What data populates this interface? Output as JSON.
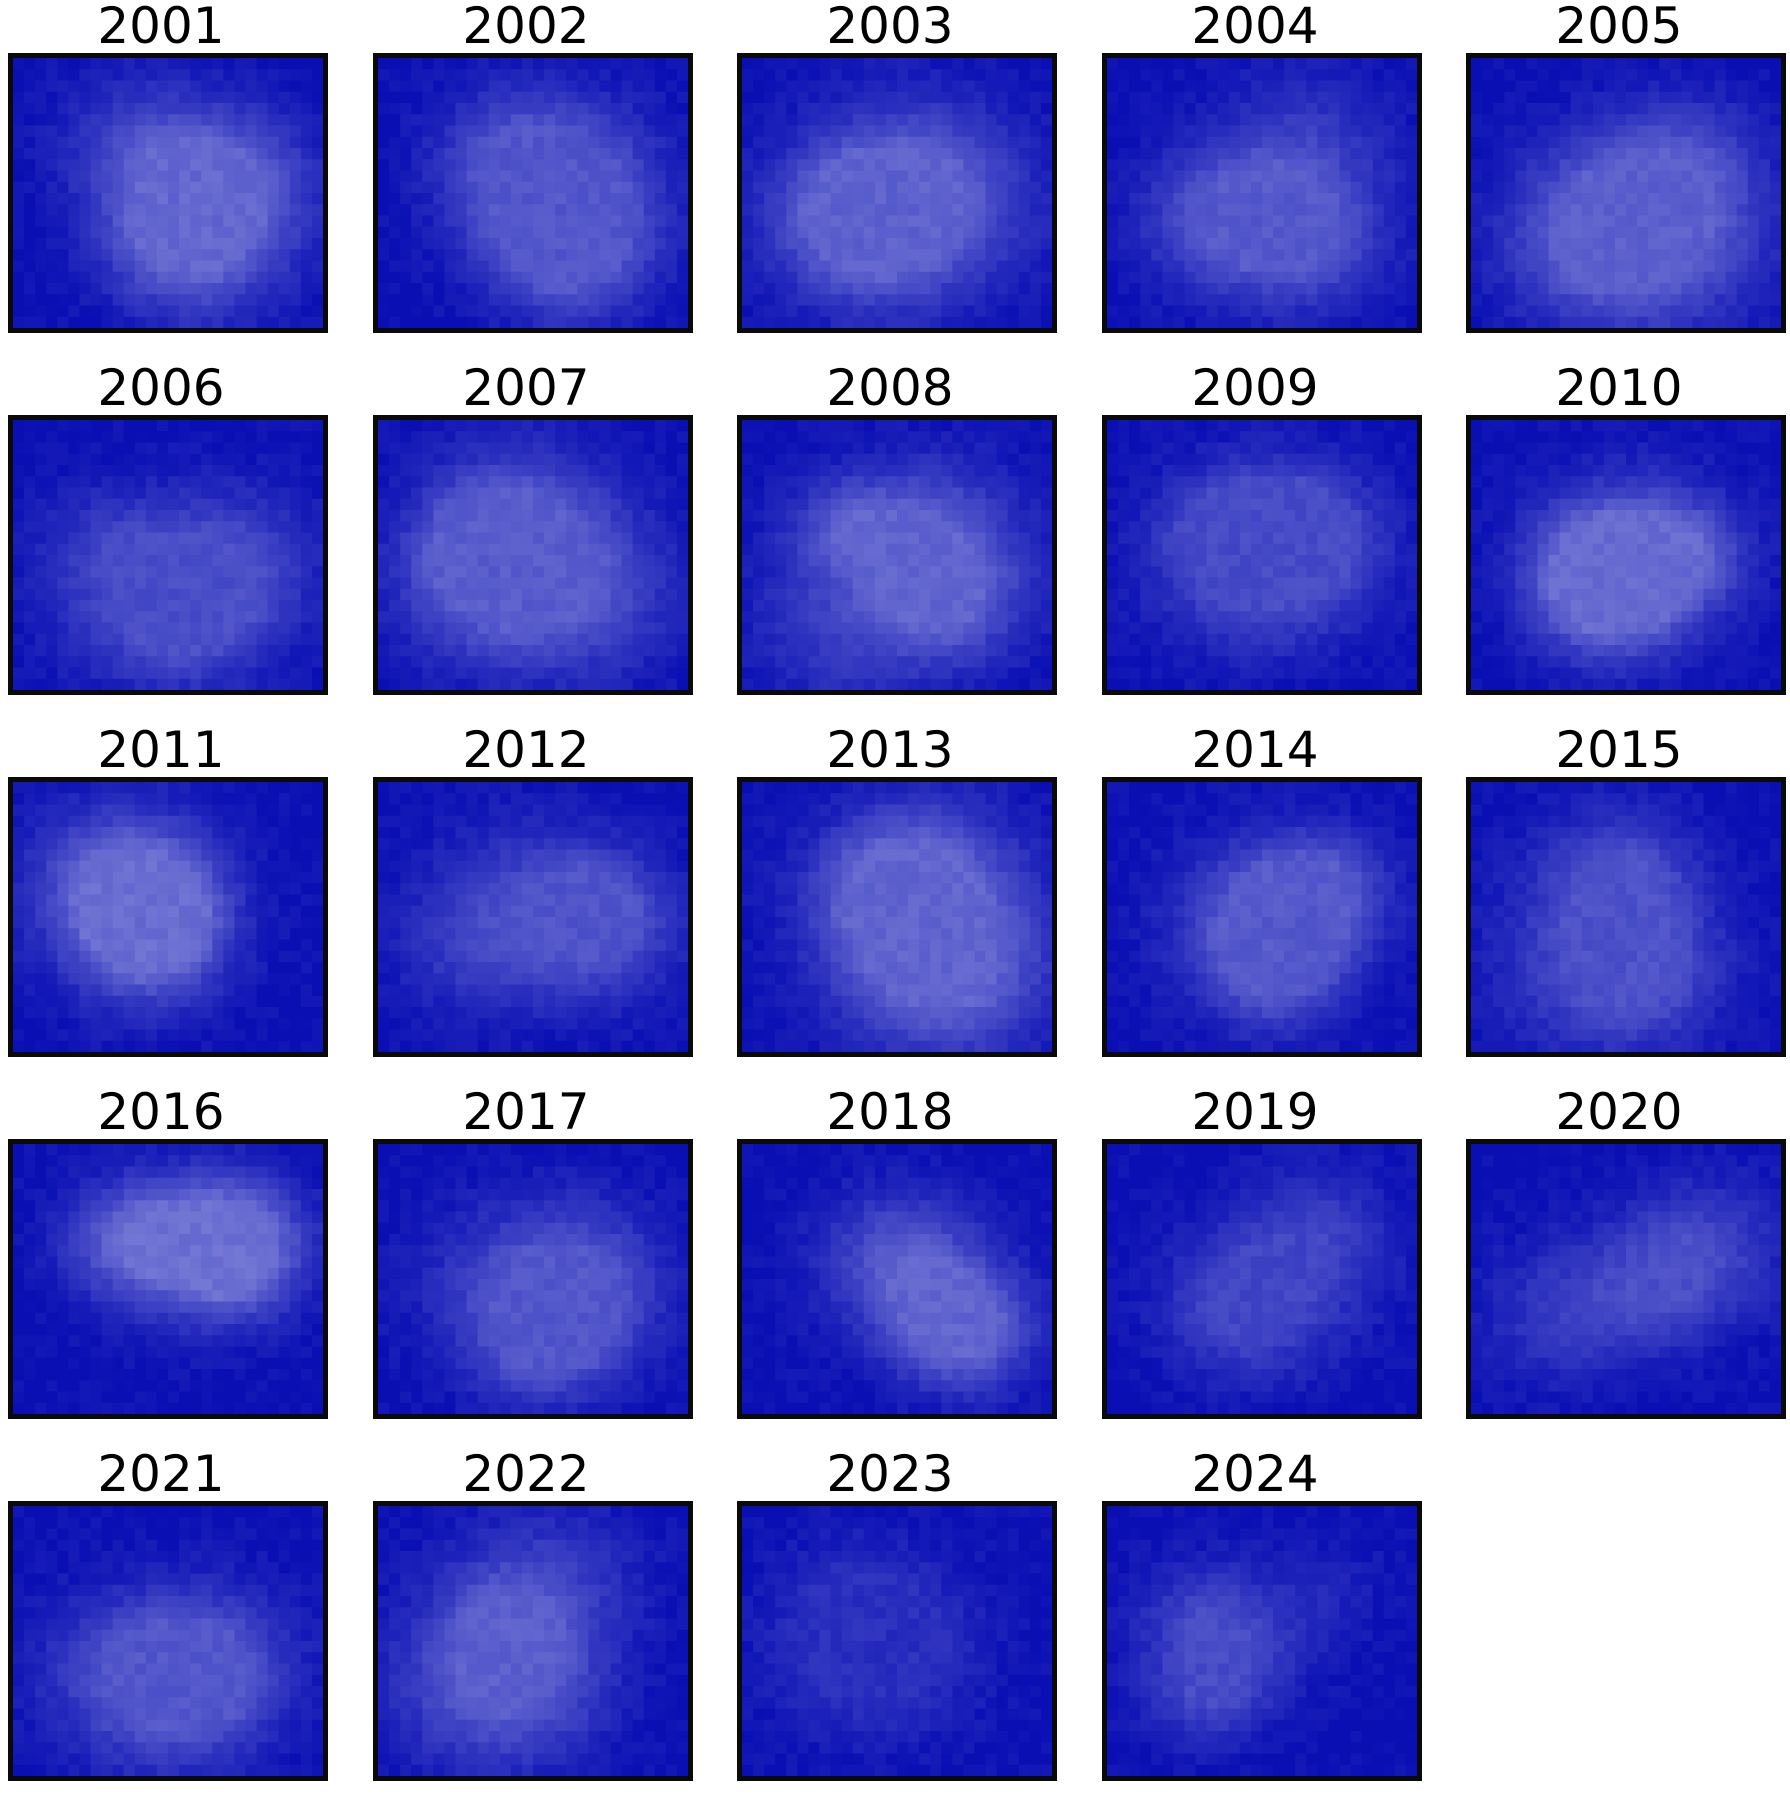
{
  "chart_data": {
    "type": "heatmap",
    "layout": "small-multiples",
    "grid": {
      "columns": 5,
      "rows": 5
    },
    "colormap": {
      "low": "#0a0fb4",
      "high": "#9a9ee0"
    },
    "axes_visible": false,
    "panels": [
      {
        "title": "2001",
        "intensity": 0.62
      },
      {
        "title": "2002",
        "intensity": 0.5
      },
      {
        "title": "2003",
        "intensity": 0.58
      },
      {
        "title": "2004",
        "intensity": 0.52
      },
      {
        "title": "2005",
        "intensity": 0.56
      },
      {
        "title": "2006",
        "intensity": 0.44
      },
      {
        "title": "2007",
        "intensity": 0.54
      },
      {
        "title": "2008",
        "intensity": 0.6
      },
      {
        "title": "2009",
        "intensity": 0.42
      },
      {
        "title": "2010",
        "intensity": 0.64
      },
      {
        "title": "2011",
        "intensity": 0.66
      },
      {
        "title": "2012",
        "intensity": 0.48
      },
      {
        "title": "2013",
        "intensity": 0.6
      },
      {
        "title": "2014",
        "intensity": 0.52
      },
      {
        "title": "2015",
        "intensity": 0.46
      },
      {
        "title": "2016",
        "intensity": 0.68
      },
      {
        "title": "2017",
        "intensity": 0.5
      },
      {
        "title": "2018",
        "intensity": 0.6
      },
      {
        "title": "2019",
        "intensity": 0.38
      },
      {
        "title": "2020",
        "intensity": 0.44
      },
      {
        "title": "2021",
        "intensity": 0.5
      },
      {
        "title": "2022",
        "intensity": 0.56
      },
      {
        "title": "2023",
        "intensity": 0.22
      },
      {
        "title": "2024",
        "intensity": 0.42
      }
    ]
  }
}
